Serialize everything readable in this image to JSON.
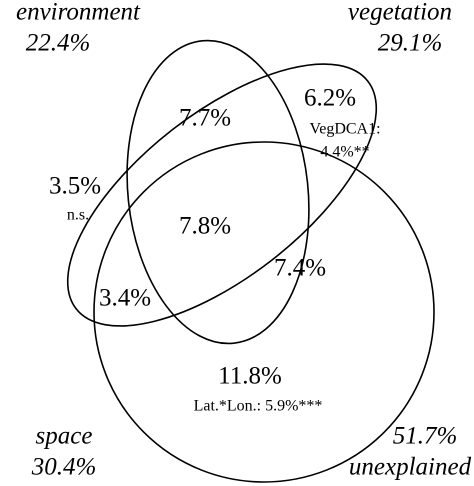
{
  "sets": [
    {
      "name": "environment",
      "total": "22.4%"
    },
    {
      "name": "vegetation",
      "total": "29.1%"
    },
    {
      "name": "space",
      "total": "30.4%"
    }
  ],
  "unexplained": {
    "value": "51.7%",
    "label": "unexplained"
  },
  "regions": [
    {
      "value": "7.7%"
    },
    {
      "value": "6.2%",
      "notes": [
        "VegDCA1:",
        "4.4%**"
      ]
    },
    {
      "value": "3.5%",
      "notes": [
        "n.s."
      ]
    },
    {
      "value": "7.8%"
    },
    {
      "value": "7.4%"
    },
    {
      "value": "3.4%"
    },
    {
      "value": "11.8%",
      "notes": [
        "Lat.*Lon.: 5.9%***"
      ]
    }
  ]
}
